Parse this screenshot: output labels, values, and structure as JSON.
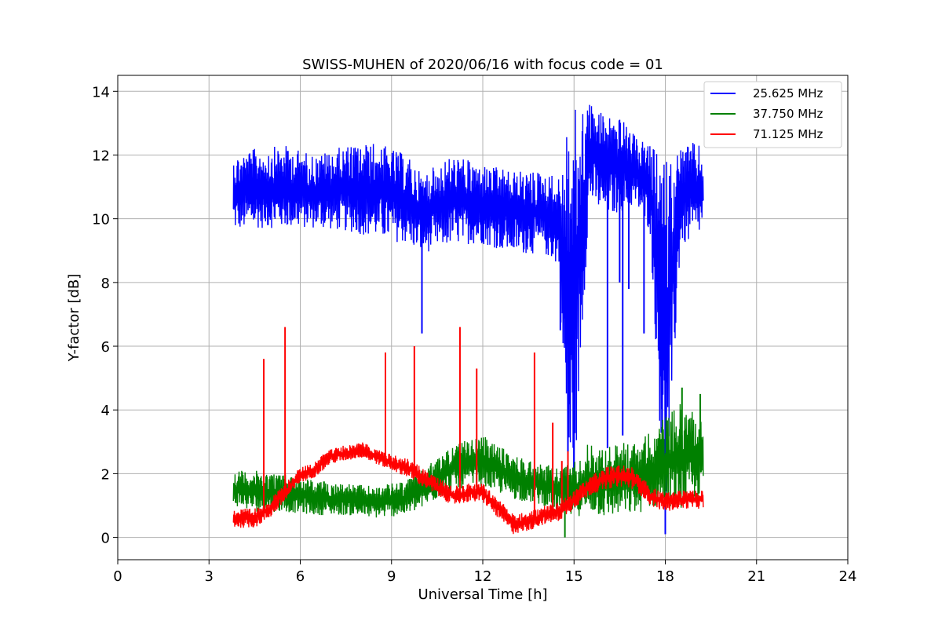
{
  "chart_data": {
    "type": "line",
    "title": "SWISS-MUHEN of 2020/06/16 with focus code = 01",
    "xlabel": "Universal Time [h]",
    "ylabel": "Y-factor [dB]",
    "xlim": [
      0,
      24
    ],
    "ylim": [
      -0.7,
      14.5
    ],
    "xticks": [
      0,
      3,
      6,
      9,
      12,
      15,
      18,
      21,
      24
    ],
    "yticks": [
      0,
      2,
      4,
      6,
      8,
      10,
      12,
      14
    ],
    "grid": true,
    "legend_position": "top-right",
    "series": [
      {
        "name": "25.625 MHz",
        "color": "#0000ff",
        "x": [
          3.8,
          4.5,
          5.5,
          6.5,
          7.5,
          8.5,
          9.5,
          10.0,
          11.0,
          12.0,
          13.0,
          14.0,
          14.5,
          14.8,
          15.0,
          15.5,
          16.0,
          16.5,
          17.0,
          17.5,
          18.0,
          18.5,
          19.0,
          19.25
        ],
        "values": [
          10.5,
          10.6,
          10.7,
          10.5,
          10.6,
          10.4,
          10.2,
          10.0,
          10.1,
          10.0,
          9.8,
          9.8,
          9.6,
          9.0,
          11.5,
          11.4,
          10.8,
          11.2,
          11.3,
          10.8,
          9.8,
          10.0,
          10.2,
          10.6
        ],
        "lower": [
          9.6,
          9.7,
          9.7,
          9.7,
          9.6,
          9.4,
          9.2,
          8.9,
          9.2,
          9.2,
          8.9,
          8.9,
          8.5,
          1.0,
          1.5,
          10.5,
          10.0,
          10.2,
          10.4,
          9.6,
          0.1,
          9.1,
          9.3,
          9.7
        ],
        "upper": [
          12.0,
          12.2,
          12.3,
          12.0,
          12.3,
          12.4,
          12.0,
          11.4,
          12.0,
          11.7,
          11.5,
          11.5,
          11.3,
          13.2,
          13.4,
          13.7,
          13.3,
          13.2,
          12.6,
          12.3,
          11.9,
          12.3,
          12.4,
          12.2
        ],
        "spikes": [
          [
            10.0,
            6.4
          ],
          [
            14.55,
            6.5
          ],
          [
            14.8,
            1.5
          ],
          [
            15.0,
            1.6
          ],
          [
            16.1,
            2.8
          ],
          [
            16.5,
            8.0
          ],
          [
            16.6,
            3.2
          ],
          [
            16.8,
            7.8
          ],
          [
            17.3,
            6.4
          ],
          [
            18.0,
            0.1
          ]
        ]
      },
      {
        "name": "37.750 MHz",
        "color": "#008000",
        "x": [
          3.8,
          4.5,
          5.5,
          6.5,
          7.5,
          8.5,
          9.5,
          10.0,
          11.0,
          12.0,
          13.0,
          14.0,
          14.5,
          15.0,
          15.5,
          16.0,
          16.5,
          17.0,
          17.5,
          18.0,
          18.5,
          19.0,
          19.25
        ],
        "values": [
          1.5,
          1.4,
          1.3,
          1.2,
          1.1,
          1.1,
          1.2,
          1.4,
          2.2,
          2.3,
          1.9,
          1.7,
          1.5,
          1.3,
          1.6,
          1.4,
          1.5,
          1.6,
          1.8,
          2.0,
          2.1,
          2.3,
          2.5
        ],
        "lower": [
          1.0,
          0.8,
          0.8,
          0.7,
          0.7,
          0.6,
          0.7,
          0.9,
          1.5,
          1.6,
          1.2,
          1.0,
          0.8,
          0.6,
          0.8,
          0.6,
          0.7,
          0.7,
          0.9,
          1.0,
          0.9,
          1.1,
          1.4
        ],
        "upper": [
          2.1,
          2.1,
          2.0,
          1.8,
          1.7,
          1.6,
          1.8,
          2.1,
          2.9,
          3.2,
          2.6,
          2.3,
          2.2,
          2.4,
          3.0,
          2.8,
          3.0,
          3.0,
          3.3,
          3.8,
          4.2,
          4.0,
          3.8
        ],
        "spikes": [
          [
            14.7,
            0.0
          ],
          [
            18.55,
            4.7
          ],
          [
            19.15,
            4.5
          ]
        ]
      },
      {
        "name": "71.125 MHz",
        "color": "#ff0000",
        "x": [
          3.8,
          4.5,
          5.0,
          5.5,
          6.0,
          6.5,
          7.0,
          7.5,
          8.0,
          8.5,
          9.0,
          9.5,
          10.0,
          10.5,
          11.0,
          11.5,
          12.0,
          12.5,
          13.0,
          13.5,
          14.0,
          14.5,
          15.0,
          15.5,
          16.0,
          16.5,
          17.0,
          17.5,
          18.0,
          18.5,
          19.0,
          19.25
        ],
        "values": [
          0.6,
          0.6,
          0.9,
          1.4,
          1.9,
          2.1,
          2.5,
          2.6,
          2.7,
          2.5,
          2.3,
          2.2,
          1.9,
          1.6,
          1.3,
          1.4,
          1.4,
          0.9,
          0.5,
          0.5,
          0.7,
          0.8,
          1.2,
          1.6,
          1.8,
          1.9,
          1.8,
          1.3,
          1.1,
          1.2,
          1.2,
          1.2
        ],
        "lower": [
          0.3,
          0.3,
          0.6,
          1.1,
          1.7,
          1.9,
          2.3,
          2.4,
          2.5,
          2.3,
          2.1,
          1.9,
          1.6,
          1.3,
          1.0,
          1.1,
          1.1,
          0.6,
          0.1,
          0.2,
          0.4,
          0.5,
          0.9,
          1.3,
          1.5,
          1.6,
          1.5,
          1.0,
          0.8,
          0.9,
          0.9,
          0.9
        ],
        "upper": [
          0.9,
          0.9,
          1.2,
          1.7,
          2.2,
          2.4,
          2.8,
          2.9,
          3.0,
          2.8,
          2.6,
          2.5,
          2.2,
          1.9,
          1.6,
          1.7,
          1.7,
          1.2,
          0.8,
          0.8,
          1.0,
          1.1,
          1.5,
          1.9,
          2.2,
          2.3,
          2.2,
          1.6,
          1.4,
          1.5,
          1.5,
          1.5
        ],
        "spikes": [
          [
            4.8,
            5.6
          ],
          [
            5.5,
            6.6
          ],
          [
            8.8,
            5.8
          ],
          [
            9.75,
            6.0
          ],
          [
            11.25,
            6.6
          ],
          [
            11.8,
            5.3
          ],
          [
            13.7,
            5.8
          ],
          [
            14.3,
            3.6
          ],
          [
            14.6,
            2.4
          ],
          [
            14.8,
            2.7
          ]
        ]
      }
    ]
  }
}
